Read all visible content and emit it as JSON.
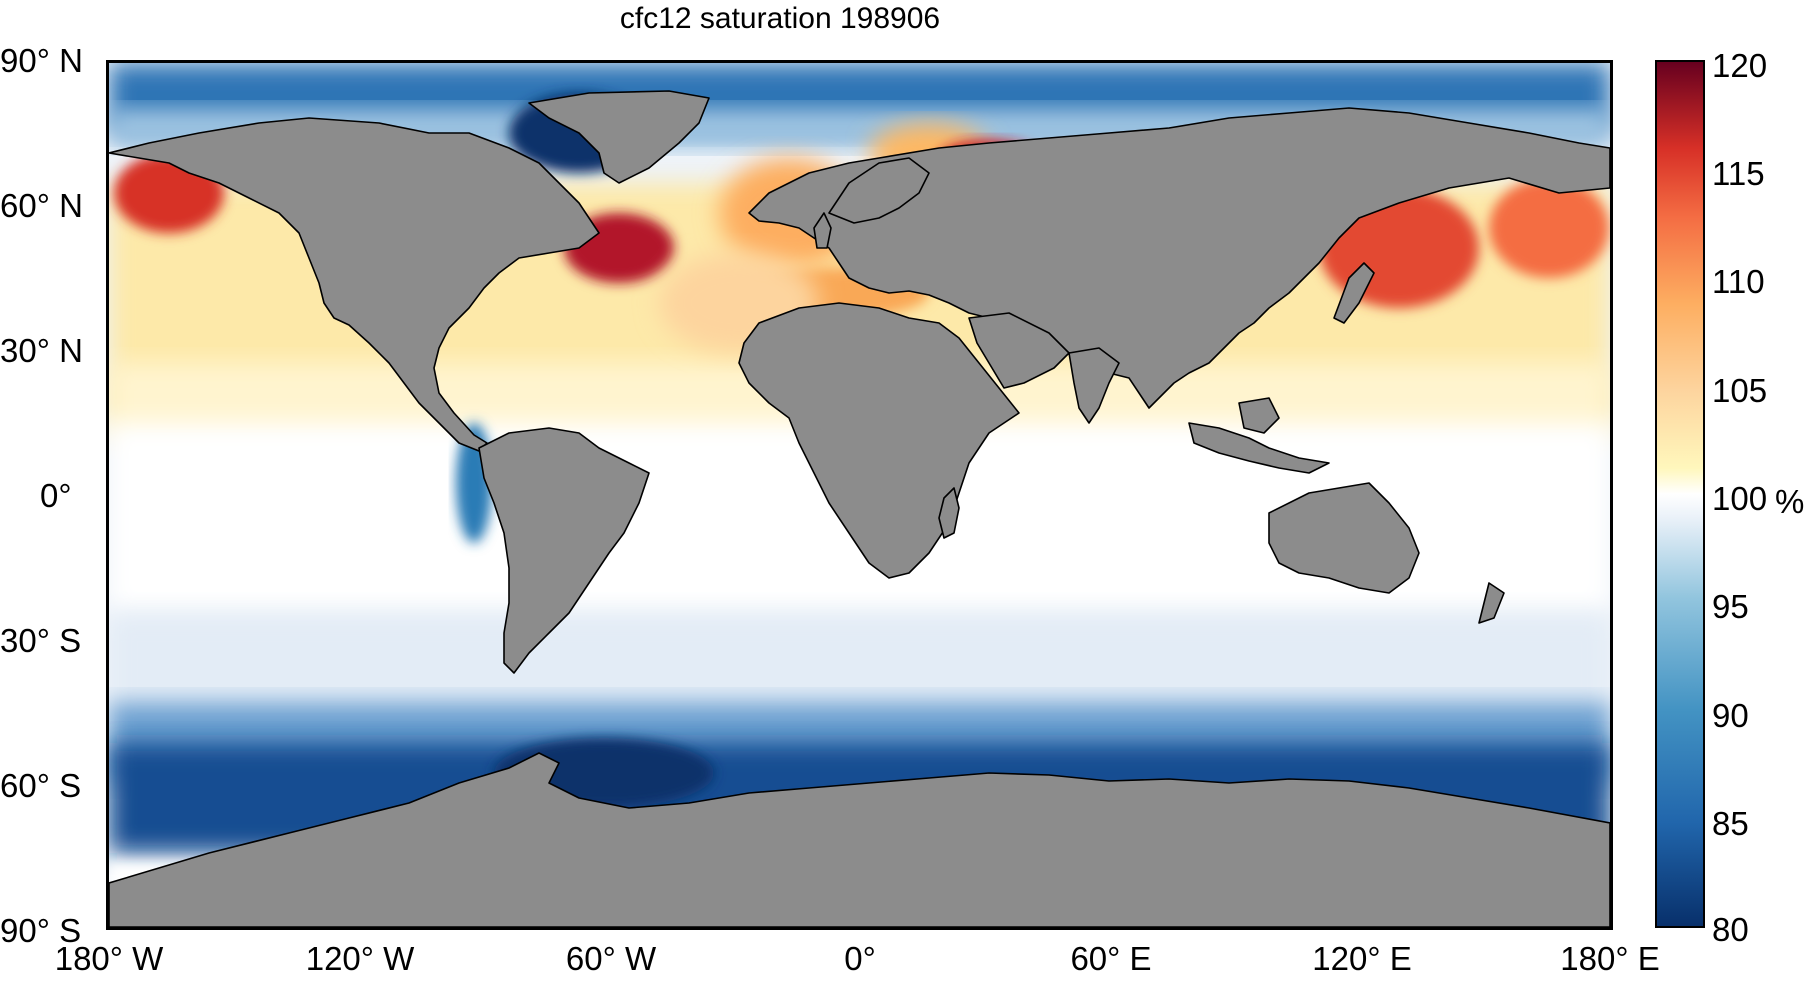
{
  "title": "cfc12 saturation 198906",
  "lat_labels": [
    "90° N",
    "60° N",
    "30° N",
    "0°",
    "30° S",
    "60° S",
    "90° S"
  ],
  "lon_labels": [
    "180° W",
    "120° W",
    "60° W",
    "0°",
    "60° E",
    "120° E",
    "180° E"
  ],
  "colorbar": {
    "ticks": [
      "120",
      "115",
      "110",
      "105",
      "100",
      "95",
      "90",
      "85",
      "80"
    ],
    "unit": "%",
    "range": [
      80,
      120
    ],
    "colors": [
      "#08306b",
      "#2166ac",
      "#4393c3",
      "#92c5de",
      "#d1e5f0",
      "#ffffff",
      "#fff7bc",
      "#fdd49e",
      "#fdae61",
      "#f46d43",
      "#d73027",
      "#a50026",
      "#67001f"
    ]
  },
  "colors": {
    "land": "#8c8c8c",
    "coastline": "#000000"
  }
}
